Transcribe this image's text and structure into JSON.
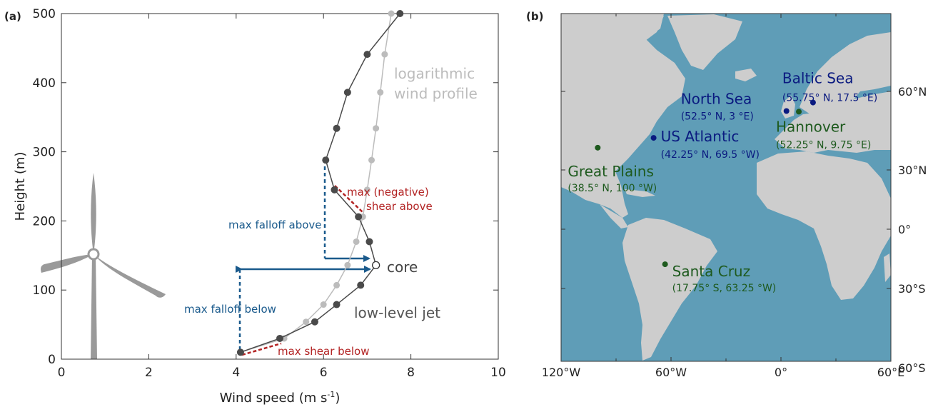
{
  "panel_a": {
    "label": "(a)",
    "xlabel": "Wind speed (m s",
    "xlabel_sup": "-1",
    "xlabel_close": ")",
    "ylabel": "Height (m)",
    "annotations": {
      "log_profile": [
        "logarithmic",
        "wind profile"
      ],
      "core": "core",
      "llj": "low-level jet",
      "max_neg_shear": [
        "max (negative)",
        "shear above"
      ],
      "max_falloff_above": "max falloff above",
      "max_falloff_below": "max falloff below",
      "max_shear_below": "max shear below"
    }
  },
  "panel_b": {
    "label": "(b)",
    "lon_ticks": [
      {
        "value": -120,
        "label": "120°W"
      },
      {
        "value": -60,
        "label": "60°W"
      },
      {
        "value": 0,
        "label": "0°"
      },
      {
        "value": 60,
        "label": "60°E"
      }
    ],
    "lat_ticks": [
      {
        "value": 60,
        "label": "60°N"
      },
      {
        "value": 30,
        "label": "30°N"
      },
      {
        "value": 0,
        "label": "0°"
      },
      {
        "value": -30,
        "label": "30°S"
      },
      {
        "value": -60,
        "label": "60°S"
      }
    ],
    "sites": [
      {
        "name": "Baltic Sea",
        "coords": "(55.75° N, 17.5 °E)",
        "lon": 17.5,
        "lat": 55.75,
        "color": "#0a1a80"
      },
      {
        "name": "North Sea",
        "coords": "(52.5° N, 3 °E)",
        "lon": 3,
        "lat": 52.5,
        "color": "#0a1a80"
      },
      {
        "name": "Hannover",
        "coords": "(52.25° N, 9.75 °E)",
        "lon": 9.75,
        "lat": 52.25,
        "color": "#1e5a1e"
      },
      {
        "name": "US Atlantic",
        "coords": "(42.25° N, 69.5 °W)",
        "lon": -69.5,
        "lat": 42.25,
        "color": "#0a1a80"
      },
      {
        "name": "Great Plains",
        "coords": "(38.5° N, 100 °W)",
        "lon": -100,
        "lat": 38.5,
        "color": "#1e5a1e"
      },
      {
        "name": "Santa Cruz",
        "coords": "(17.75° S, 63.25 °W)",
        "lon": -63.25,
        "lat": -17.75,
        "color": "#1e5a1e"
      }
    ],
    "colors": {
      "ocean": "#5f9db7",
      "land": "#cdcdcd"
    }
  },
  "chart_data": {
    "type": "line",
    "xlabel": "Wind speed (m s-1)",
    "ylabel": "Height (m)",
    "xlim": [
      0,
      10
    ],
    "ylim": [
      0,
      500
    ],
    "xticks": [
      0,
      2,
      4,
      6,
      8,
      10
    ],
    "yticks": [
      0,
      100,
      200,
      300,
      400,
      500
    ],
    "grid": false,
    "series": [
      {
        "name": "low-level jet",
        "color": "#4a4a4a",
        "x": [
          4.1,
          5.0,
          5.8,
          6.3,
          6.85,
          7.2,
          7.05,
          6.8,
          6.25,
          6.05,
          6.3,
          6.55,
          7.0,
          7.75
        ],
        "y": [
          10,
          30,
          54,
          79,
          107,
          136,
          170,
          206,
          245,
          288,
          334,
          386,
          441,
          500
        ]
      },
      {
        "name": "logarithmic wind profile",
        "color": "#bcbcbc",
        "x": [
          4.1,
          5.1,
          5.6,
          6.0,
          6.3,
          6.55,
          6.75,
          6.9,
          7.0,
          7.1,
          7.2,
          7.3,
          7.4,
          7.55
        ],
        "y": [
          10,
          30,
          54,
          79,
          107,
          136,
          170,
          206,
          245,
          288,
          334,
          386,
          441,
          500
        ]
      }
    ],
    "core_point": {
      "x": 7.2,
      "y": 136
    }
  }
}
